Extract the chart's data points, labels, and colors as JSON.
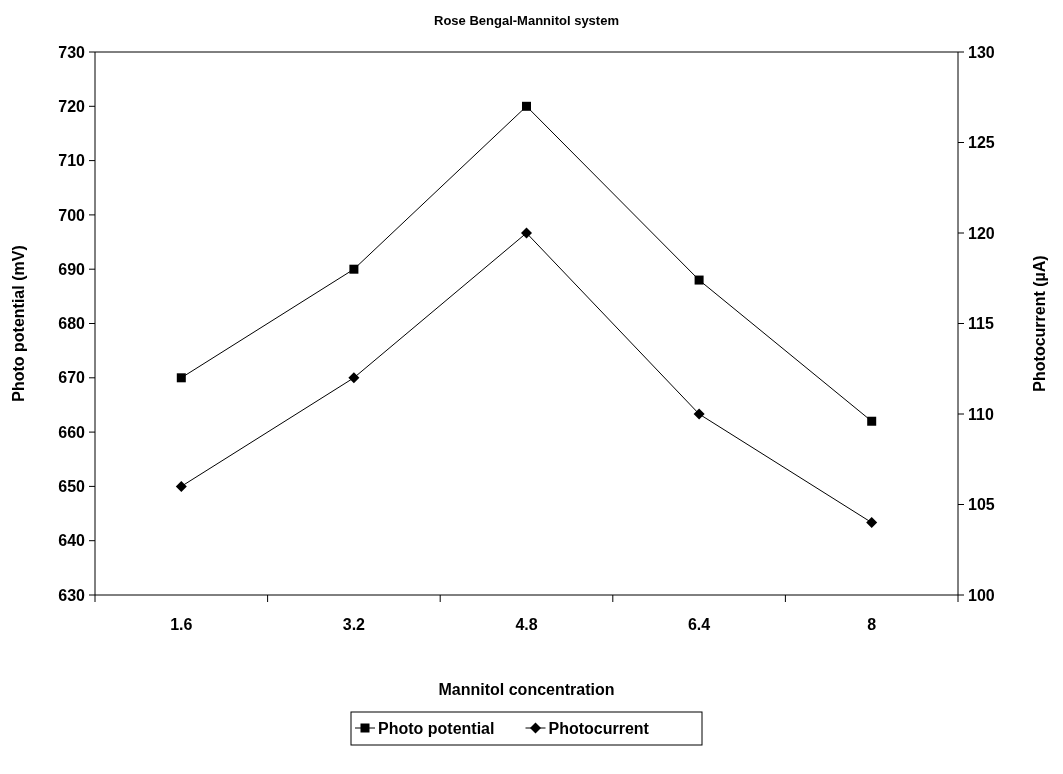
{
  "chart_data": {
    "type": "line",
    "title": "Rose Bengal-Mannitol system",
    "xlabel": "Mannitol concentration",
    "ylabel": "Photo potential (mV)",
    "y2label": "Photocurrent (µA)",
    "categories": [
      "1.6",
      "3.2",
      "4.8",
      "6.4",
      "8"
    ],
    "series": [
      {
        "name": "Photo potential",
        "color": "#000000",
        "marker": "square",
        "values": [
          670,
          690,
          720,
          688,
          662
        ]
      },
      {
        "name": "Photocurrent",
        "color": "#000000",
        "marker": "diamond",
        "axis": "y2",
        "values": [
          106,
          112,
          120,
          110,
          104
        ]
      }
    ],
    "ylim": [
      630,
      730
    ],
    "yticks": [
      630,
      640,
      650,
      660,
      670,
      680,
      690,
      700,
      710,
      720,
      730
    ],
    "y2lim": [
      100,
      130
    ],
    "y2ticks": [
      100,
      105,
      110,
      115,
      120,
      125,
      130
    ],
    "grid": false,
    "legend": "bottom",
    "line_style": "solid"
  }
}
